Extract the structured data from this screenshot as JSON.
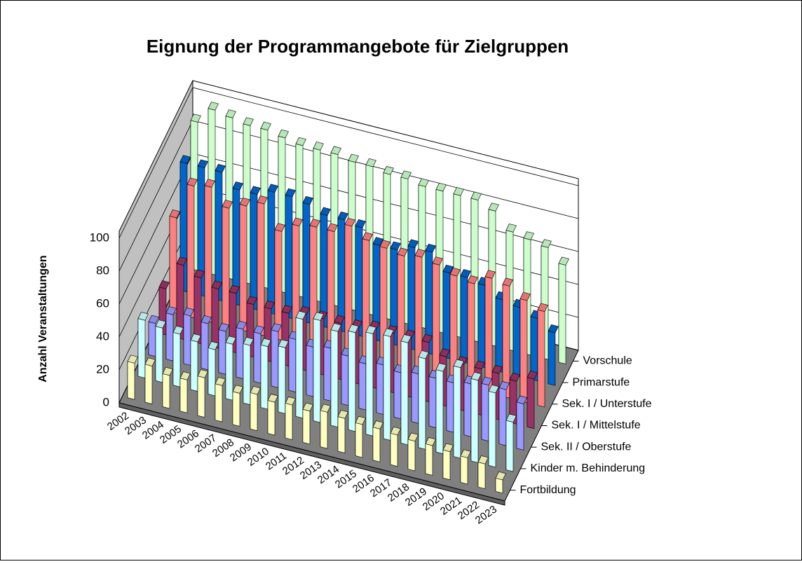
{
  "chart_data": {
    "type": "bar3d",
    "title": "Eignung der Programmangebote für Zielgruppen",
    "y_label": "Anzahl Veranstaltungen",
    "categories": [
      "2002",
      "2003",
      "2004",
      "2005",
      "2006",
      "2007",
      "2008",
      "2009",
      "2010",
      "2011",
      "2012",
      "2013",
      "2014",
      "2015",
      "2016",
      "2017",
      "2018",
      "2019",
      "2020",
      "2021",
      "2022",
      "2023"
    ],
    "ylim": [
      0,
      100
    ],
    "yticks": [
      0,
      20,
      40,
      60,
      80,
      100
    ],
    "grid": true,
    "series": [
      {
        "name": "Fortbildung",
        "color": "#ffffc0",
        "values": [
          22,
          23,
          20,
          20,
          24,
          22,
          20,
          22,
          20,
          21,
          20,
          22,
          21,
          20,
          20,
          19,
          18,
          18,
          17,
          16,
          15,
          8
        ]
      },
      {
        "name": "Kinder m. Behinderung",
        "color": "#ccffff",
        "values": [
          35,
          33,
          32,
          30,
          28,
          34,
          36,
          38,
          40,
          60,
          62,
          58,
          60,
          62,
          63,
          62,
          55,
          50,
          55,
          50,
          45,
          30
        ]
      },
      {
        "name": "Sek. II / Oberstufe",
        "color": "#9999ff",
        "values": [
          20,
          28,
          30,
          28,
          26,
          30,
          30,
          34,
          32,
          30,
          32,
          30,
          28,
          30,
          28,
          30,
          30,
          30,
          32,
          34,
          34,
          28
        ]
      },
      {
        "name": "Sek. I / Mittelstufe",
        "color": "#993366",
        "values": [
          28,
          45,
          40,
          36,
          36,
          32,
          32,
          32,
          34,
          34,
          34,
          34,
          36,
          36,
          36,
          36,
          30,
          28,
          28,
          28,
          26,
          30
        ]
      },
      {
        "name": "Sek. I / Unterstufe",
        "color": "#ff8080",
        "values": [
          58,
          80,
          82,
          72,
          76,
          80,
          66,
          72,
          74,
          74,
          80,
          74,
          72,
          70,
          72,
          70,
          66,
          64,
          70,
          68,
          62,
          58
        ]
      },
      {
        "name": "Primarstufe",
        "color": "#0066cc",
        "values": [
          78,
          78,
          78,
          70,
          70,
          74,
          74,
          72,
          68,
          68,
          66,
          58,
          58,
          62,
          62,
          52,
          52,
          50,
          44,
          42,
          38,
          32
        ]
      },
      {
        "name": "Vorschule",
        "color": "#ccffcc",
        "values": [
          90,
          100,
          98,
          96,
          96,
          94,
          92,
          92,
          92,
          90,
          90,
          88,
          88,
          86,
          86,
          86,
          86,
          82,
          72,
          70,
          68,
          60
        ]
      }
    ]
  }
}
